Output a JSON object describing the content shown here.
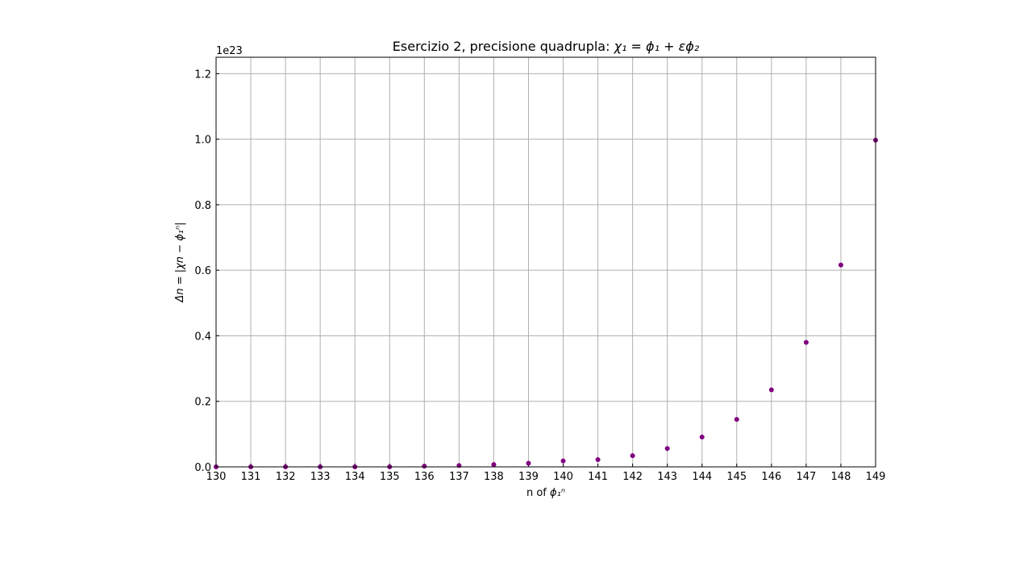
{
  "chart_data": {
    "type": "scatter",
    "title_text": "Esercizio 2, precisione quadrupla: ",
    "title_math": "χ₁ = ϕ₁ + εϕ₂",
    "xlabel_text": "n of ",
    "xlabel_math": "ϕ₁ⁿ",
    "ylabel": "Δn = |χn − ϕ₁ⁿ|",
    "y_offset_label": "1e23",
    "xlim": [
      130,
      149
    ],
    "ylim": [
      0,
      1.25
    ],
    "x_ticks": [
      130,
      131,
      132,
      133,
      134,
      135,
      136,
      137,
      138,
      139,
      140,
      141,
      142,
      143,
      144,
      145,
      146,
      147,
      148,
      149
    ],
    "y_ticks": [
      0.0,
      0.2,
      0.4,
      0.6,
      0.8,
      1.0,
      1.2
    ],
    "y_tick_labels": [
      "0.0",
      "0.2",
      "0.4",
      "0.6",
      "0.8",
      "1.0",
      "1.2"
    ],
    "grid": true,
    "marker_color": "#800080",
    "x": [
      130,
      131,
      132,
      133,
      134,
      135,
      136,
      137,
      138,
      139,
      140,
      141,
      142,
      143,
      144,
      145,
      146,
      147,
      148,
      149
    ],
    "y": [
      0.0,
      0.0,
      0.0,
      0.0,
      0.0,
      0.0,
      0.002,
      0.004,
      0.007,
      0.011,
      0.018,
      0.022,
      0.034,
      0.056,
      0.091,
      0.145,
      0.235,
      0.38,
      0.616,
      0.997
    ]
  }
}
